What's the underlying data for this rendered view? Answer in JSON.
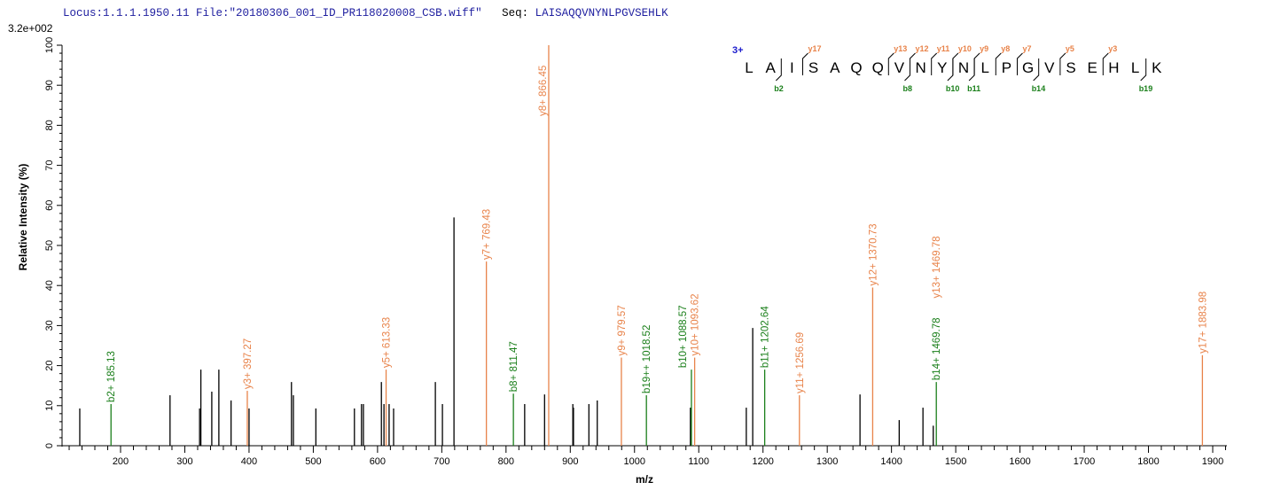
{
  "header": {
    "locus": "Locus:1.1.1.1950.11",
    "file": "File:\"20180306_001_ID_PR118020008_CSB.wiff\"",
    "seq_label": "Seq:",
    "seq": "LAISAQQVNYNLPGVSEHLK"
  },
  "colors": {
    "y_ion": "#e8834a",
    "b_ion": "#1a7f1a",
    "unassigned": "#000000",
    "header_text": "#2020a0",
    "charge": "#1a1acc"
  },
  "annotation": {
    "charge": "3+",
    "residues": [
      "L",
      "A",
      "I",
      "S",
      "A",
      "Q",
      "Q",
      "V",
      "N",
      "Y",
      "N",
      "L",
      "P",
      "G",
      "V",
      "S",
      "E",
      "H",
      "L",
      "K"
    ],
    "y_marks": [
      {
        "before": 3,
        "label": "y17"
      },
      {
        "before": 7,
        "label": "y13"
      },
      {
        "before": 8,
        "label": "y12"
      },
      {
        "before": 9,
        "label": "y11"
      },
      {
        "before": 10,
        "label": "y10"
      },
      {
        "before": 11,
        "label": "y9"
      },
      {
        "before": 12,
        "label": "y8"
      },
      {
        "before": 13,
        "label": "y7"
      },
      {
        "before": 15,
        "label": "y5"
      },
      {
        "before": 17,
        "label": "y3"
      }
    ],
    "b_marks": [
      {
        "before": 2,
        "label": "b2"
      },
      {
        "before": 8,
        "label": "b8"
      },
      {
        "before": 10,
        "label": "b10"
      },
      {
        "before": 11,
        "label": "b11"
      },
      {
        "before": 14,
        "label": "b14"
      },
      {
        "before": 19,
        "label": "b19"
      }
    ]
  },
  "chart_data": {
    "type": "bar",
    "title": "",
    "xlabel": "m/z",
    "ylabel": "Relative   Intensity (%)",
    "scale_label": "3.2e+002",
    "xlim": [
      115,
      1925
    ],
    "ylim": [
      0,
      100
    ],
    "x_ticks": [
      200,
      300,
      400,
      500,
      600,
      700,
      800,
      900,
      1000,
      1100,
      1200,
      1300,
      1400,
      1500,
      1600,
      1700,
      1800,
      1900
    ],
    "y_ticks": [
      0,
      10,
      20,
      30,
      40,
      50,
      60,
      70,
      80,
      90,
      100
    ],
    "grid": false,
    "peaks": [
      {
        "mz": 136.5,
        "intensity": 9.3,
        "type": "none"
      },
      {
        "mz": 185.13,
        "intensity": 10.4,
        "type": "b",
        "label": "b2+ 185.13"
      },
      {
        "mz": 277,
        "intensity": 12.6,
        "type": "none"
      },
      {
        "mz": 323,
        "intensity": 9.3,
        "type": "none"
      },
      {
        "mz": 325,
        "intensity": 19,
        "type": "none"
      },
      {
        "mz": 342,
        "intensity": 13.5,
        "type": "none"
      },
      {
        "mz": 353,
        "intensity": 19,
        "type": "none"
      },
      {
        "mz": 372,
        "intensity": 11.3,
        "type": "none"
      },
      {
        "mz": 397.27,
        "intensity": 13.7,
        "type": "y",
        "label": "y3+ 397.27"
      },
      {
        "mz": 400,
        "intensity": 9.3,
        "type": "none"
      },
      {
        "mz": 466,
        "intensity": 15.9,
        "type": "none"
      },
      {
        "mz": 469,
        "intensity": 12.6,
        "type": "none"
      },
      {
        "mz": 504,
        "intensity": 9.3,
        "type": "none"
      },
      {
        "mz": 564,
        "intensity": 9.3,
        "type": "none"
      },
      {
        "mz": 575,
        "intensity": 10.4,
        "type": "none"
      },
      {
        "mz": 578,
        "intensity": 10.4,
        "type": "none"
      },
      {
        "mz": 606,
        "intensity": 15.9,
        "type": "none"
      },
      {
        "mz": 610,
        "intensity": 10.4,
        "type": "none"
      },
      {
        "mz": 613.33,
        "intensity": 19,
        "type": "y",
        "label": "y5+ 613.33"
      },
      {
        "mz": 618,
        "intensity": 10.4,
        "type": "none"
      },
      {
        "mz": 625,
        "intensity": 9.3,
        "type": "none"
      },
      {
        "mz": 690,
        "intensity": 15.9,
        "type": "none"
      },
      {
        "mz": 701,
        "intensity": 10.4,
        "type": "none"
      },
      {
        "mz": 719,
        "intensity": 57,
        "type": "none"
      },
      {
        "mz": 769.43,
        "intensity": 46,
        "type": "y",
        "label": "y7+ 769.43"
      },
      {
        "mz": 811.47,
        "intensity": 13,
        "type": "b",
        "label": "b8+ 811.47"
      },
      {
        "mz": 829,
        "intensity": 10.4,
        "type": "none"
      },
      {
        "mz": 860,
        "intensity": 12.8,
        "type": "none"
      },
      {
        "mz": 866.45,
        "intensity": 100,
        "type": "y",
        "label": "y8+ 866.45"
      },
      {
        "mz": 904,
        "intensity": 10.4,
        "type": "none"
      },
      {
        "mz": 905,
        "intensity": 9.5,
        "type": "none"
      },
      {
        "mz": 929,
        "intensity": 10.4,
        "type": "none"
      },
      {
        "mz": 942,
        "intensity": 11.3,
        "type": "none"
      },
      {
        "mz": 979.57,
        "intensity": 22,
        "type": "y",
        "label": "y9+ 979.57"
      },
      {
        "mz": 1018.52,
        "intensity": 12.6,
        "type": "b",
        "label": "b19++ 1018.52"
      },
      {
        "mz": 1087,
        "intensity": 9.5,
        "type": "none"
      },
      {
        "mz": 1088.57,
        "intensity": 19,
        "type": "b",
        "label": "b10+ 1088.57"
      },
      {
        "mz": 1093.62,
        "intensity": 22,
        "type": "y",
        "label": "y10+ 1093.62"
      },
      {
        "mz": 1174,
        "intensity": 9.5,
        "type": "none"
      },
      {
        "mz": 1184,
        "intensity": 29.4,
        "type": "none"
      },
      {
        "mz": 1202.64,
        "intensity": 19,
        "type": "b",
        "label": "b11+ 1202.64"
      },
      {
        "mz": 1256.69,
        "intensity": 12.6,
        "type": "y",
        "label": "y11+ 1256.69"
      },
      {
        "mz": 1351,
        "intensity": 12.8,
        "type": "none"
      },
      {
        "mz": 1370.73,
        "intensity": 39.5,
        "type": "y",
        "label": "y12+ 1370.73"
      },
      {
        "mz": 1412,
        "intensity": 6.4,
        "type": "none"
      },
      {
        "mz": 1449,
        "intensity": 9.5,
        "type": "none"
      },
      {
        "mz": 1465,
        "intensity": 5,
        "type": "none"
      },
      {
        "mz": 1469.78,
        "intensity": 15.9,
        "type": "b",
        "label": "b14+ 1469.78",
        "label_y": "y13+ 1469.78"
      },
      {
        "mz": 1883.98,
        "intensity": 22.6,
        "type": "y",
        "label": "y17+ 1883.98"
      }
    ]
  }
}
